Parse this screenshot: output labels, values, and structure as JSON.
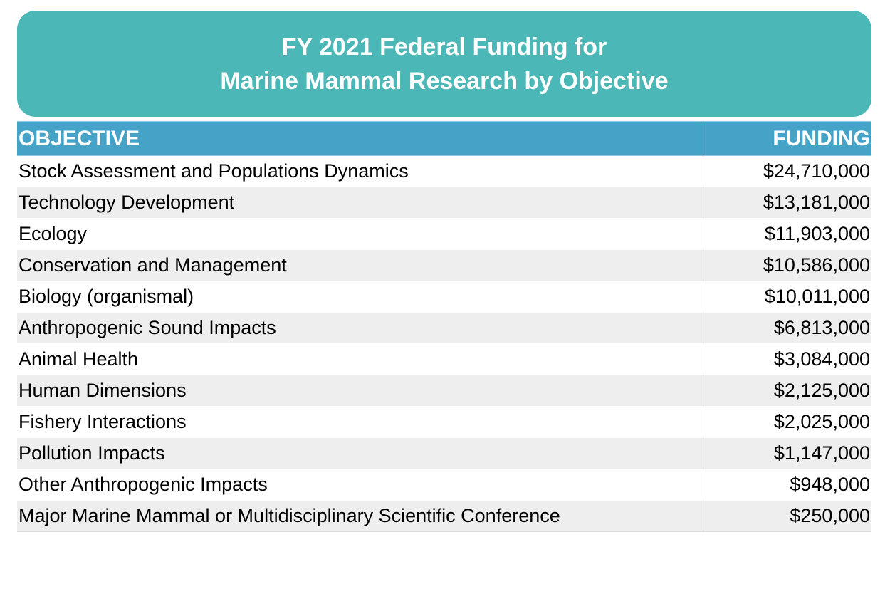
{
  "title": {
    "line1": "FY 2021 Federal Funding for",
    "line2": "Marine Mammal Research by Objective"
  },
  "table": {
    "headers": {
      "objective": "OBJECTIVE",
      "funding": "FUNDING"
    },
    "rows": [
      {
        "objective": "Stock Assessment and Populations Dynamics",
        "funding": "$24,710,000"
      },
      {
        "objective": "Technology Development",
        "funding": "$13,181,000"
      },
      {
        "objective": "Ecology",
        "funding": "$11,903,000"
      },
      {
        "objective": "Conservation and Management",
        "funding": "$10,586,000"
      },
      {
        "objective": "Biology (organismal)",
        "funding": "$10,011,000"
      },
      {
        "objective": "Anthropogenic Sound Impacts",
        "funding": "$6,813,000"
      },
      {
        "objective": "Animal Health",
        "funding": "$3,084,000"
      },
      {
        "objective": "Human Dimensions",
        "funding": "$2,125,000"
      },
      {
        "objective": "Fishery Interactions",
        "funding": "$2,025,000"
      },
      {
        "objective": "Pollution Impacts",
        "funding": "$1,147,000"
      },
      {
        "objective": "Other Anthropogenic Impacts",
        "funding": "$948,000"
      },
      {
        "objective": "Major Marine Mammal or Multidisciplinary Scientific Conference",
        "funding": "$250,000"
      }
    ]
  },
  "colors": {
    "title_banner": "#4bb7b6",
    "header_row": "#45a3c8",
    "stripe_row": "#eeeeee"
  }
}
